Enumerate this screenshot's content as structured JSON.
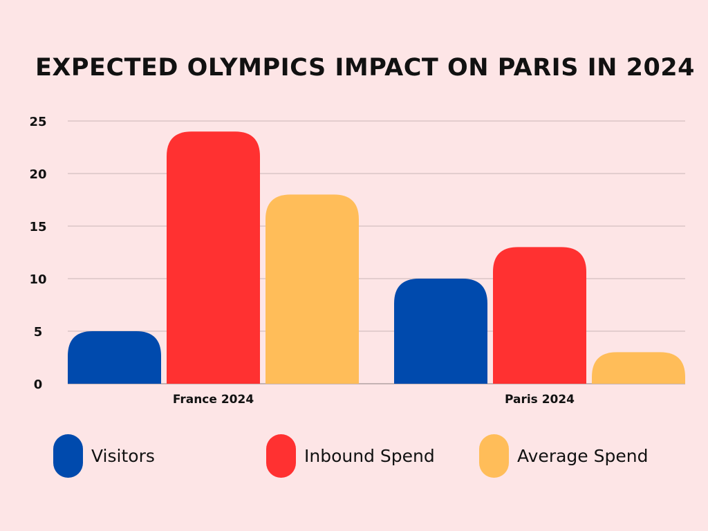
{
  "chart_data": {
    "type": "bar",
    "title": "EXPECTED OLYMPICS IMPACT ON PARIS IN 2024",
    "categories": [
      "France 2024",
      "Paris 2024"
    ],
    "series": [
      {
        "name": "Visitors",
        "values": [
          5,
          10
        ],
        "color": "#004aad"
      },
      {
        "name": "Inbound Spend",
        "values": [
          24,
          13
        ],
        "color": "#ff3131"
      },
      {
        "name": "Average Spend",
        "values": [
          18,
          3
        ],
        "color": "#ffbd59"
      }
    ],
    "ylim": [
      0,
      25
    ],
    "yticks": [
      0,
      5,
      10,
      15,
      20,
      25
    ],
    "xlabel": "",
    "ylabel": "",
    "grid": true,
    "legend": "bottom"
  }
}
